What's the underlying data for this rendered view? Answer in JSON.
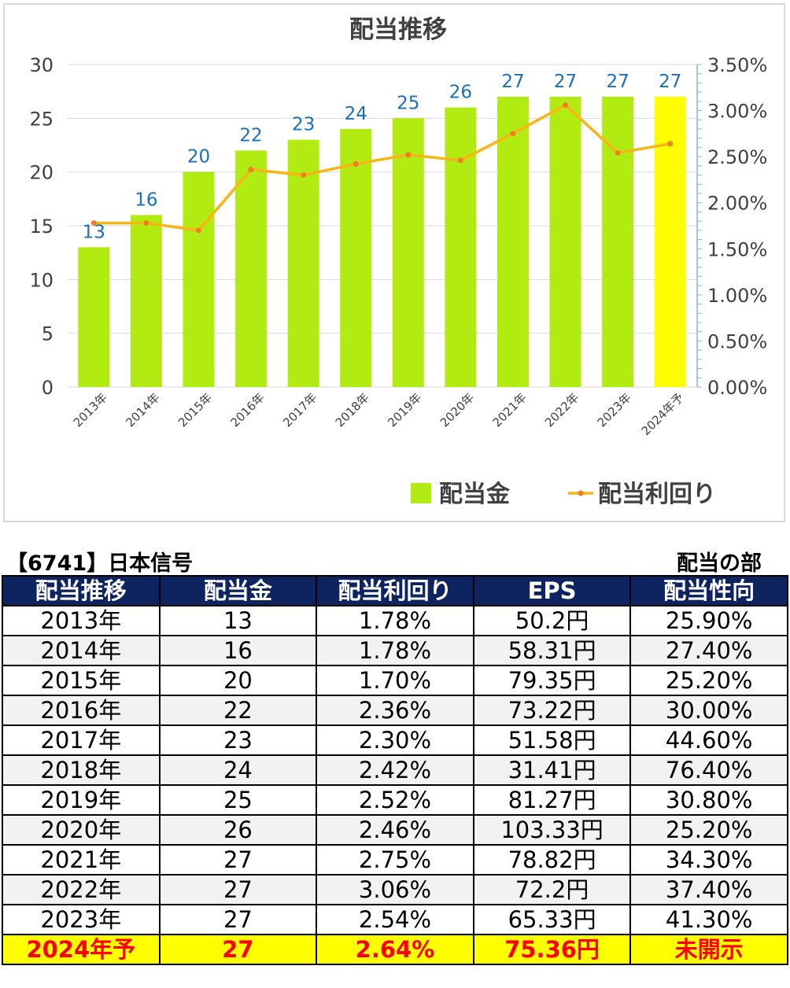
{
  "chart_data": {
    "type": "bar",
    "title": "配当推移",
    "categories": [
      "2013年",
      "2014年",
      "2015年",
      "2016年",
      "2017年",
      "2018年",
      "2019年",
      "2020年",
      "2021年",
      "2022年",
      "2023年",
      "2024年予"
    ],
    "series": [
      {
        "name": "配当金",
        "type": "bar",
        "axis": "left",
        "color": "#b2eb12",
        "forecast_color": "#ffff00",
        "values": [
          13,
          16,
          20,
          22,
          23,
          24,
          25,
          26,
          27,
          27,
          27,
          27
        ]
      },
      {
        "name": "配当利回り",
        "type": "line",
        "axis": "right",
        "color": "#f7b516",
        "marker_color": "#ef7d22",
        "values": [
          1.78,
          1.78,
          1.7,
          2.36,
          2.3,
          2.42,
          2.52,
          2.46,
          2.75,
          3.06,
          2.54,
          2.64
        ]
      }
    ],
    "ylim": [
      0,
      30
    ],
    "y_ticks": [
      0,
      5,
      10,
      15,
      20,
      25,
      30
    ],
    "y2lim": [
      0,
      3.5
    ],
    "y2_ticks": [
      "0.00%",
      "0.50%",
      "1.00%",
      "1.50%",
      "2.00%",
      "2.50%",
      "3.00%",
      "3.50%"
    ],
    "grid": true,
    "legend_position": "bottom-right",
    "data_label_color": "#1a6fba"
  },
  "caption": {
    "company": "【6741】日本信号",
    "section": "配当の部"
  },
  "table": {
    "headers": [
      "配当推移",
      "配当金",
      "配当利回り",
      "EPS",
      "配当性向"
    ],
    "rows": [
      [
        "2013年",
        "13",
        "1.78%",
        "50.2円",
        "25.90%"
      ],
      [
        "2014年",
        "16",
        "1.78%",
        "58.31円",
        "27.40%"
      ],
      [
        "2015年",
        "20",
        "1.70%",
        "79.35円",
        "25.20%"
      ],
      [
        "2016年",
        "22",
        "2.36%",
        "73.22円",
        "30.00%"
      ],
      [
        "2017年",
        "23",
        "2.30%",
        "51.58円",
        "44.60%"
      ],
      [
        "2018年",
        "24",
        "2.42%",
        "31.41円",
        "76.40%"
      ],
      [
        "2019年",
        "25",
        "2.52%",
        "81.27円",
        "30.80%"
      ],
      [
        "2020年",
        "26",
        "2.46%",
        "103.33円",
        "25.20%"
      ],
      [
        "2021年",
        "27",
        "2.75%",
        "78.82円",
        "34.30%"
      ],
      [
        "2022年",
        "27",
        "3.06%",
        "72.2円",
        "37.40%"
      ],
      [
        "2023年",
        "27",
        "2.54%",
        "65.33円",
        "41.30%"
      ],
      [
        "2024年予",
        "27",
        "2.64%",
        "75.36円",
        "未開示"
      ]
    ]
  }
}
